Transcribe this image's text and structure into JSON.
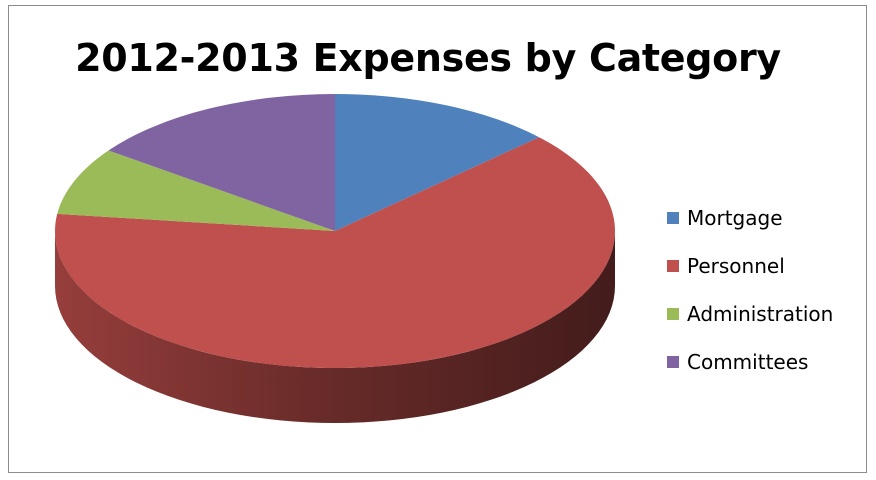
{
  "chart_data": {
    "type": "pie",
    "title": "2012-2013 Expenses by Category",
    "categories": [
      "Mortgage",
      "Personnel",
      "Administration",
      "Committees"
    ],
    "values": [
      13,
      64,
      8,
      15
    ],
    "unit": "percent (estimated from slice angles)",
    "colors": [
      "#4f81bd",
      "#c0504d",
      "#9bbb59",
      "#8064a2"
    ],
    "style": "3d",
    "legend": "right",
    "data_labels": false
  }
}
